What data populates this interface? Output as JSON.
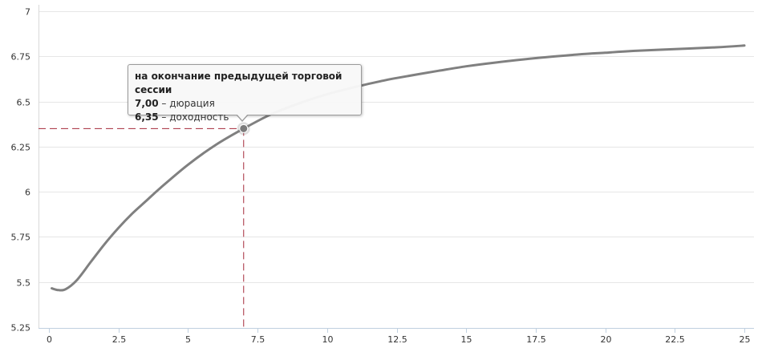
{
  "chart_data": {
    "type": "line",
    "title": "",
    "xlabel": "",
    "ylabel": "",
    "xlim": [
      0,
      25
    ],
    "ylim": [
      5.25,
      7
    ],
    "x_ticks": [
      "0",
      "2.5",
      "5",
      "7.5",
      "10",
      "12.5",
      "15",
      "17.5",
      "20",
      "22.5",
      "25"
    ],
    "y_ticks": [
      "5.25",
      "5.5",
      "5.75",
      "6",
      "6.25",
      "6.5",
      "6.75",
      "7"
    ],
    "grid": true,
    "series": [
      {
        "color": "#808080",
        "x": [
          0.1,
          0.35,
          0.6,
          1.0,
          1.5,
          2.0,
          2.5,
          3.0,
          3.5,
          4.0,
          5.0,
          6.0,
          7.0,
          8.0,
          9.0,
          10.0,
          11.0,
          12.0,
          12.5,
          14.0,
          15.0,
          16.0,
          17.5,
          19.0,
          20.0,
          21.0,
          22.5,
          24.0,
          25.0
        ],
        "y": [
          5.465,
          5.455,
          5.46,
          5.51,
          5.61,
          5.71,
          5.8,
          5.88,
          5.95,
          6.02,
          6.15,
          6.26,
          6.35,
          6.43,
          6.49,
          6.54,
          6.58,
          6.615,
          6.63,
          6.67,
          6.695,
          6.715,
          6.74,
          6.76,
          6.77,
          6.78,
          6.79,
          6.8,
          6.81
        ]
      }
    ],
    "highlight": {
      "x": 7.0,
      "y": 6.35,
      "marker_color": "#7b7b7b",
      "guide_color": "#a52a3a"
    }
  },
  "tooltip": {
    "title": "на окончание предыдущей торговой сессии",
    "duration_value": "7,00",
    "duration_label": " – дюрация",
    "yield_value": "6,35",
    "yield_label": " – доходность"
  }
}
